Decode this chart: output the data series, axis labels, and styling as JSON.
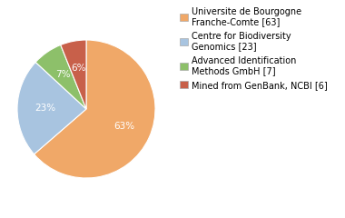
{
  "values": [
    63,
    23,
    7,
    6
  ],
  "colors": [
    "#f0a868",
    "#a8c4e0",
    "#8dc06a",
    "#c8604a"
  ],
  "pct_labels": [
    "63%",
    "23%",
    "7%",
    "6%"
  ],
  "legend_labels": [
    "Universite de Bourgogne\nFranche-Comte [63]",
    "Centre for Biodiversity\nGenomics [23]",
    "Advanced Identification\nMethods GmbH [7]",
    "Mined from GenBank, NCBI [6]"
  ],
  "startangle": 90,
  "background_color": "#ffffff",
  "text_color": "#ffffff",
  "legend_fontsize": 7.0,
  "pct_fontsize": 7.5
}
